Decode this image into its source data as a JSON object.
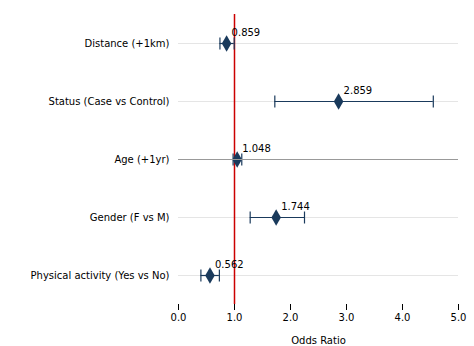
{
  "chart_data": {
    "type": "forest",
    "categories": [
      "Distance (+1km)",
      "Status (Case vs Control)",
      "Age (+1yr)",
      "Gender (F vs M)",
      "Physical activity (Yes vs No)"
    ],
    "values": [
      0.859,
      2.859,
      1.048,
      1.744,
      0.562
    ],
    "ci_lower": [
      0.74,
      1.72,
      0.975,
      1.28,
      0.4
    ],
    "ci_upper": [
      0.995,
      4.55,
      1.13,
      2.25,
      0.73
    ],
    "color": "#1a3a5c",
    "reference_line": {
      "value": 1.0,
      "color": "#cc0000"
    },
    "xlabel": "Odds Ratio",
    "xlim": [
      0,
      5
    ],
    "xticks": [
      0,
      1,
      2,
      3,
      4,
      5
    ],
    "grid": true,
    "data_labels": true
  }
}
